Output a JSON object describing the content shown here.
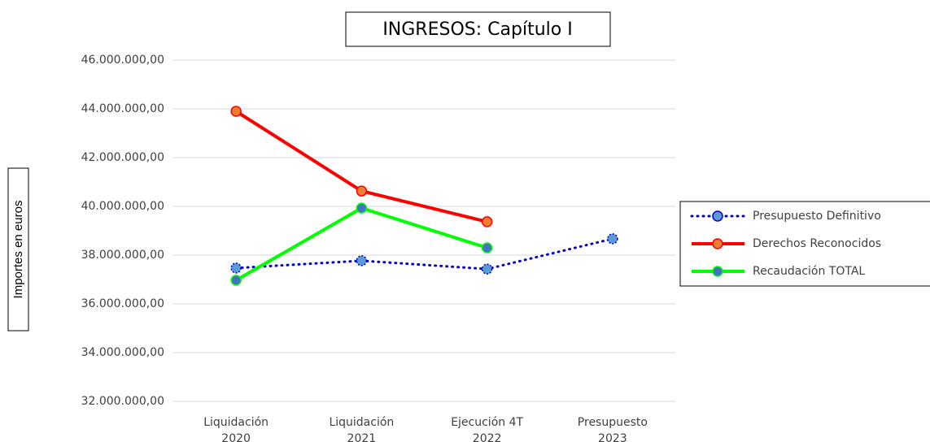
{
  "chart_data": {
    "type": "line",
    "title": "INGRESOS: Capítulo I",
    "y_label": "Importes en euros",
    "categories": [
      [
        "Liquidación",
        "2020"
      ],
      [
        "Liquidación",
        "2021"
      ],
      [
        "Ejecución 4T",
        "2022"
      ],
      [
        "Presupuesto",
        "2023"
      ]
    ],
    "ylim": [
      32000000,
      46000000
    ],
    "yticks": [
      {
        "value": 32000000,
        "label": "32.000.000,00"
      },
      {
        "value": 34000000,
        "label": "34.000.000,00"
      },
      {
        "value": 36000000,
        "label": "36.000.000,00"
      },
      {
        "value": 38000000,
        "label": "38.000.000,00"
      },
      {
        "value": 40000000,
        "label": "40.000.000,00"
      },
      {
        "value": 42000000,
        "label": "42.000.000,00"
      },
      {
        "value": 44000000,
        "label": "44.000.000,00"
      },
      {
        "value": 46000000,
        "label": "46.000.000,00"
      }
    ],
    "grid": true,
    "series": [
      {
        "name": "Presupuesto Definitivo",
        "color": "#0000cc",
        "marker_color": "#5b9bd5",
        "line_style": "dotted",
        "values": [
          37470000,
          37770000,
          37430000,
          38670000
        ]
      },
      {
        "name": "Derechos Reconocidos",
        "color": "#ff0000",
        "marker_color": "#ed7d31",
        "line_style": "solid",
        "values": [
          43900000,
          40630000,
          39370000,
          null
        ]
      },
      {
        "name": "Recaudación TOTAL",
        "color": "#00ff00",
        "marker_color": "#4472c4",
        "line_style": "solid",
        "values": [
          36970000,
          39930000,
          38300000,
          null
        ]
      }
    ]
  }
}
